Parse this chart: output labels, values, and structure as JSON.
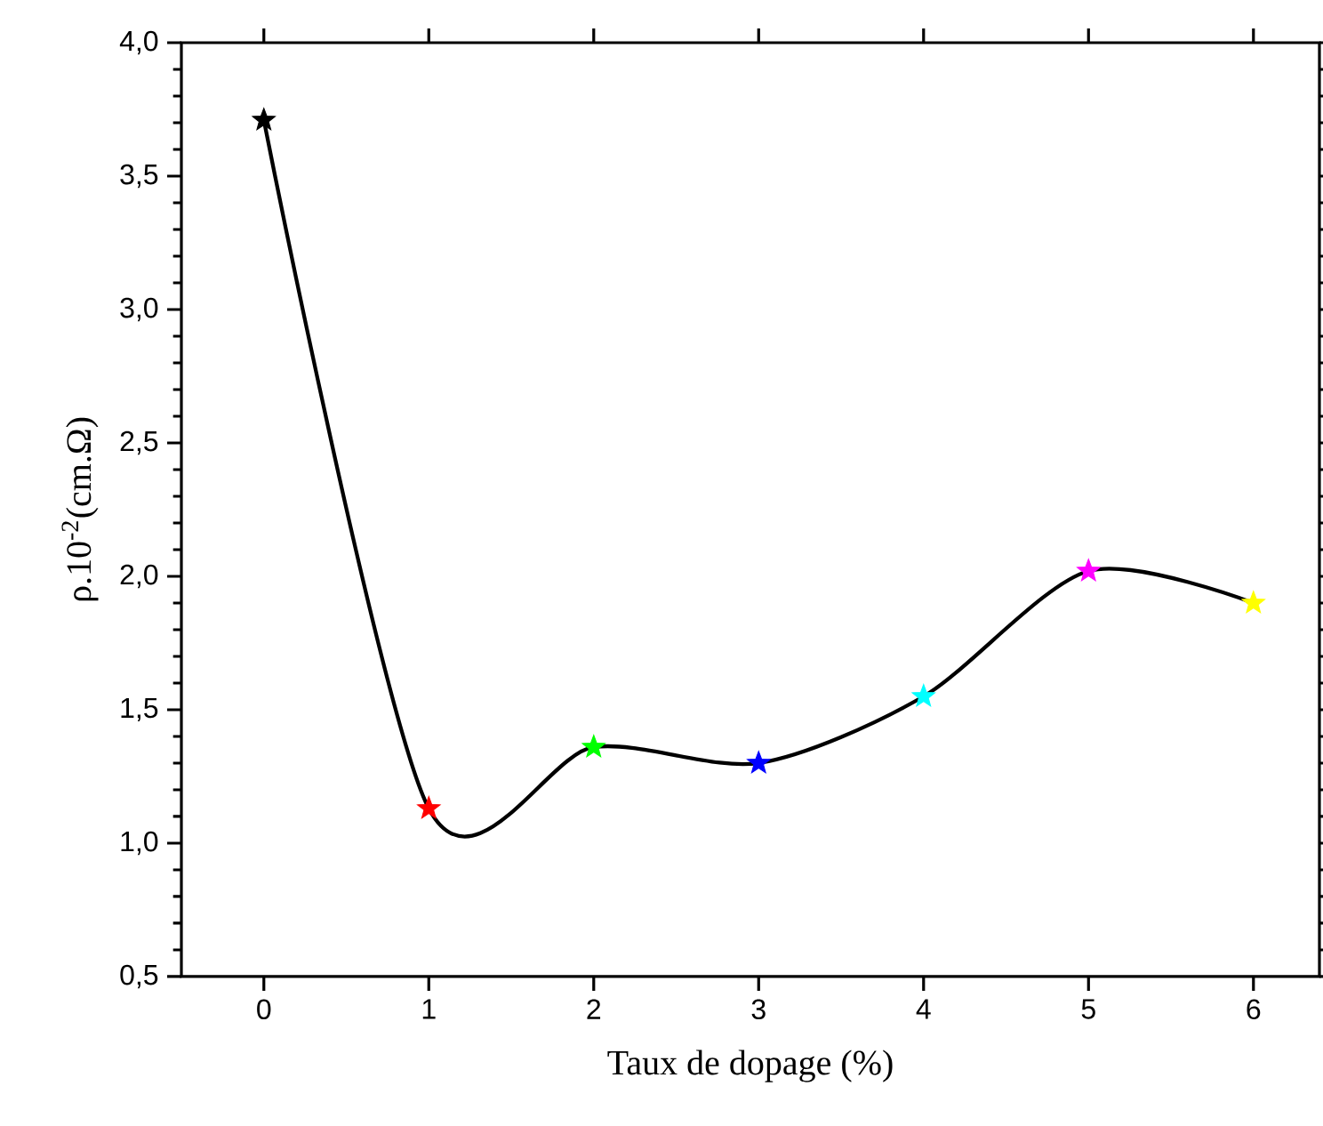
{
  "chart_data": {
    "type": "line",
    "xlabel": "Taux de dopage (%)",
    "ylabel": "ρ.10$^{-2}$(cm.Ω)",
    "x": [
      0,
      1,
      2,
      3,
      4,
      5,
      6
    ],
    "series": [
      {
        "color": "#000000",
        "marker": "none",
        "line_style": "solid",
        "values": [
          3.71,
          1.13,
          1.36,
          1.3,
          1.55,
          2.02,
          1.9
        ]
      },
      {
        "type": "scatter",
        "marker": "star",
        "colors": [
          "#000000",
          "#ff0000",
          "#00ff00",
          "#0000ff",
          "#00ffff",
          "#ff00ff",
          "#ffff00"
        ],
        "values": [
          3.71,
          1.13,
          1.36,
          1.3,
          1.55,
          2.02,
          1.9
        ]
      }
    ],
    "xlim": [
      -0.5,
      6.4
    ],
    "ylim": [
      0.5,
      4.0
    ],
    "xticks": [
      0,
      1,
      2,
      3,
      4,
      5,
      6
    ],
    "yticks": [
      {
        "value": 0.5,
        "label": "0,5"
      },
      {
        "value": 1.0,
        "label": "1,0"
      },
      {
        "value": 1.5,
        "label": "1,5"
      },
      {
        "value": 2.0,
        "label": "2,0"
      },
      {
        "value": 2.5,
        "label": "2,5"
      },
      {
        "value": 3.0,
        "label": "3,0"
      },
      {
        "value": 3.5,
        "label": "3,5"
      },
      {
        "value": 4.0,
        "label": "4,0"
      }
    ],
    "grid": false
  }
}
